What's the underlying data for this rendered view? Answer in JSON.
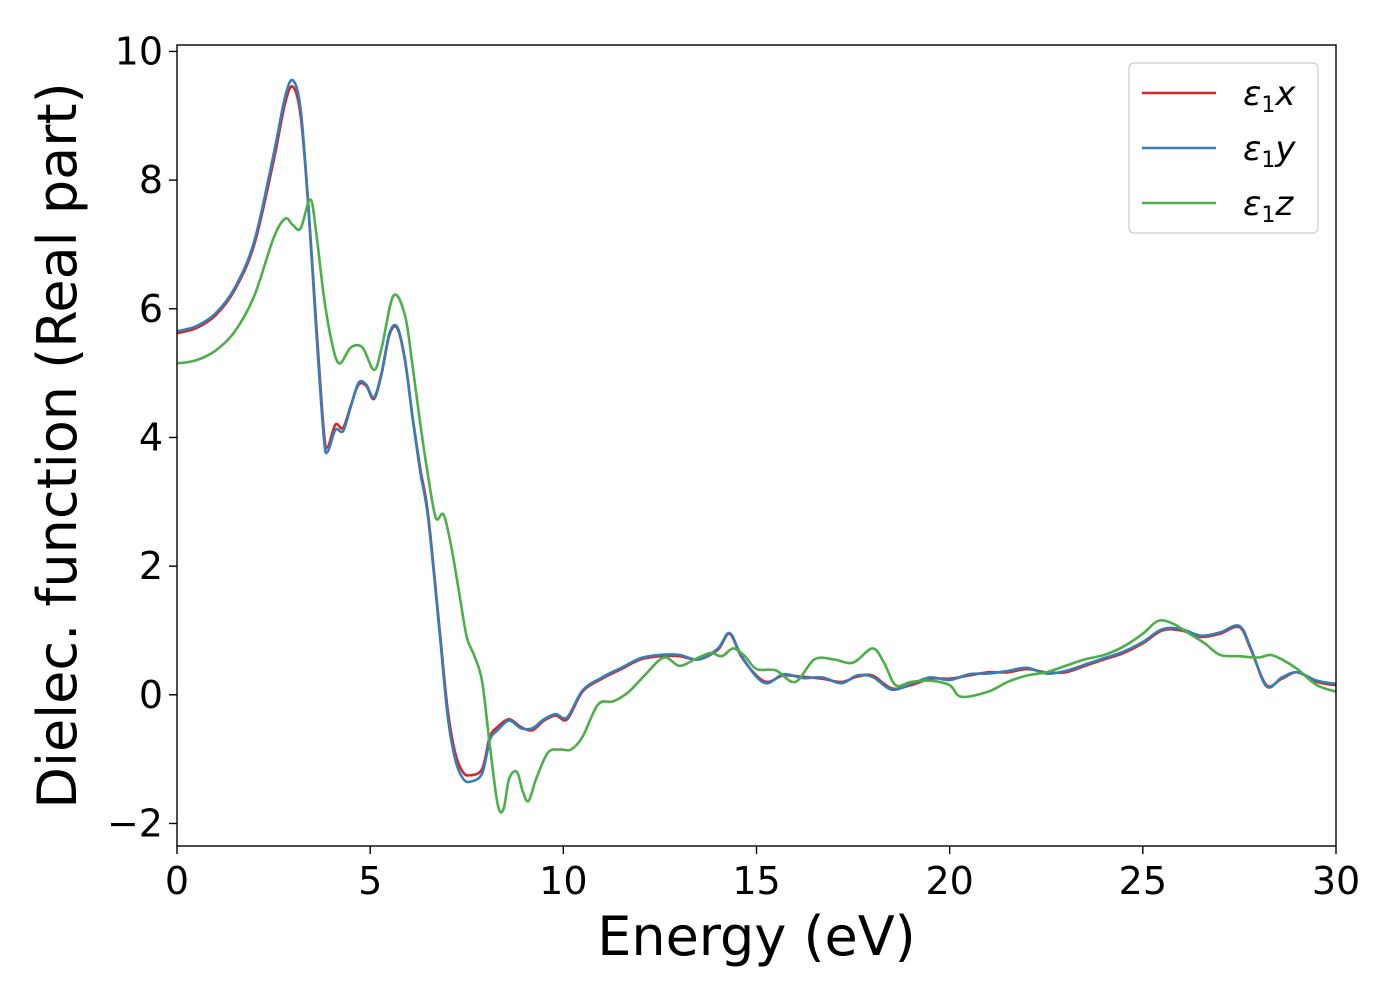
{
  "chart_data": {
    "type": "line",
    "xlabel": "Energy (eV)",
    "ylabel": "Dielec. function (Real part)",
    "xlim": [
      0,
      30
    ],
    "ylim": [
      -2.35,
      10.1
    ],
    "xticks": [
      0,
      5,
      10,
      15,
      20,
      25,
      30
    ],
    "yticks": [
      -2,
      0,
      2,
      4,
      6,
      8,
      10
    ],
    "xtick_labels": [
      "0",
      "5",
      "10",
      "15",
      "20",
      "25",
      "30"
    ],
    "ytick_labels": [
      "−2",
      "0",
      "2",
      "4",
      "6",
      "8",
      "10"
    ],
    "grid": false,
    "legend": "top-right",
    "series": [
      {
        "name": "ε₁x",
        "legend_main": "ε",
        "legend_sub": "1",
        "legend_tail": "x",
        "color": "#d62728",
        "x": [
          0,
          0.5,
          1.0,
          1.5,
          2.0,
          2.5,
          2.8,
          3.0,
          3.2,
          3.4,
          3.6,
          3.8,
          3.9,
          4.1,
          4.3,
          4.5,
          4.7,
          4.9,
          5.1,
          5.3,
          5.5,
          5.7,
          5.9,
          6.1,
          6.3,
          6.5,
          6.8,
          7.0,
          7.2,
          7.4,
          7.6,
          7.9,
          8.1,
          8.3,
          8.6,
          8.9,
          9.2,
          9.5,
          9.8,
          10.1,
          10.5,
          11.0,
          11.5,
          12.0,
          12.5,
          13.0,
          13.5,
          14.0,
          14.3,
          14.6,
          15.0,
          15.3,
          15.7,
          16.2,
          16.7,
          17.2,
          17.6,
          18.0,
          18.5,
          19.0,
          19.5,
          20.0,
          20.5,
          21.0,
          21.5,
          22.0,
          22.5,
          23.0,
          23.5,
          24.0,
          24.5,
          25.0,
          25.5,
          26.0,
          26.5,
          27.0,
          27.5,
          27.8,
          28.2,
          28.6,
          29.0,
          29.5,
          30.0
        ],
        "y": [
          5.62,
          5.7,
          5.9,
          6.3,
          7.0,
          8.3,
          9.2,
          9.45,
          9.0,
          7.6,
          5.8,
          4.1,
          3.85,
          4.2,
          4.15,
          4.5,
          4.82,
          4.8,
          4.6,
          5.0,
          5.6,
          5.7,
          5.2,
          4.3,
          3.5,
          2.8,
          1.0,
          -0.2,
          -0.9,
          -1.2,
          -1.25,
          -1.15,
          -0.65,
          -0.5,
          -0.38,
          -0.5,
          -0.55,
          -0.4,
          -0.32,
          -0.38,
          0.05,
          0.25,
          0.4,
          0.55,
          0.6,
          0.6,
          0.55,
          0.7,
          0.95,
          0.6,
          0.3,
          0.2,
          0.3,
          0.28,
          0.25,
          0.2,
          0.28,
          0.3,
          0.1,
          0.15,
          0.25,
          0.25,
          0.3,
          0.35,
          0.35,
          0.4,
          0.35,
          0.35,
          0.45,
          0.55,
          0.65,
          0.8,
          1.0,
          1.0,
          0.9,
          0.95,
          1.05,
          0.7,
          0.15,
          0.25,
          0.35,
          0.2,
          0.15
        ]
      },
      {
        "name": "ε₁y",
        "legend_main": "ε",
        "legend_sub": "1",
        "legend_tail": "y",
        "color": "#377eb8",
        "x": [
          0,
          0.5,
          1.0,
          1.5,
          2.0,
          2.5,
          2.8,
          3.0,
          3.2,
          3.4,
          3.6,
          3.8,
          3.9,
          4.1,
          4.3,
          4.5,
          4.7,
          4.9,
          5.1,
          5.3,
          5.5,
          5.7,
          5.9,
          6.1,
          6.3,
          6.5,
          6.8,
          7.0,
          7.2,
          7.4,
          7.6,
          7.9,
          8.1,
          8.3,
          8.6,
          8.9,
          9.2,
          9.5,
          9.8,
          10.1,
          10.5,
          11.0,
          11.5,
          12.0,
          12.5,
          13.0,
          13.5,
          14.0,
          14.3,
          14.6,
          15.0,
          15.3,
          15.7,
          16.2,
          16.7,
          17.2,
          17.6,
          18.0,
          18.5,
          19.0,
          19.5,
          20.0,
          20.5,
          21.0,
          21.5,
          22.0,
          22.5,
          23.0,
          23.5,
          24.0,
          24.5,
          25.0,
          25.5,
          26.0,
          26.5,
          27.0,
          27.5,
          27.8,
          28.2,
          28.6,
          29.0,
          29.5,
          30.0
        ],
        "y": [
          5.65,
          5.73,
          5.93,
          6.33,
          7.05,
          8.4,
          9.3,
          9.55,
          9.1,
          7.6,
          5.7,
          4.0,
          3.78,
          4.12,
          4.1,
          4.48,
          4.85,
          4.82,
          4.62,
          5.02,
          5.62,
          5.72,
          5.22,
          4.3,
          3.45,
          2.75,
          0.95,
          -0.3,
          -1.0,
          -1.3,
          -1.35,
          -1.22,
          -0.7,
          -0.55,
          -0.4,
          -0.52,
          -0.52,
          -0.38,
          -0.3,
          -0.35,
          0.07,
          0.27,
          0.42,
          0.57,
          0.62,
          0.62,
          0.55,
          0.72,
          0.96,
          0.62,
          0.28,
          0.18,
          0.32,
          0.26,
          0.27,
          0.18,
          0.3,
          0.28,
          0.08,
          0.17,
          0.27,
          0.23,
          0.32,
          0.33,
          0.37,
          0.42,
          0.33,
          0.37,
          0.47,
          0.57,
          0.67,
          0.82,
          1.02,
          1.02,
          0.92,
          0.97,
          1.07,
          0.72,
          0.13,
          0.27,
          0.35,
          0.22,
          0.17
        ]
      },
      {
        "name": "ε₁z",
        "legend_main": "ε",
        "legend_sub": "1",
        "legend_tail": "z",
        "color": "#4daf4a",
        "x": [
          0,
          0.5,
          1.0,
          1.5,
          2.0,
          2.5,
          2.8,
          3.0,
          3.2,
          3.45,
          3.6,
          3.8,
          4.0,
          4.2,
          4.5,
          4.8,
          5.1,
          5.3,
          5.6,
          5.9,
          6.1,
          6.3,
          6.5,
          6.7,
          6.9,
          7.1,
          7.3,
          7.5,
          7.7,
          7.9,
          8.1,
          8.3,
          8.45,
          8.6,
          8.8,
          8.95,
          9.1,
          9.3,
          9.6,
          9.9,
          10.2,
          10.5,
          10.9,
          11.3,
          11.7,
          12.1,
          12.6,
          13.0,
          13.4,
          13.8,
          14.1,
          14.4,
          14.7,
          15.0,
          15.5,
          16.0,
          16.5,
          17.0,
          17.5,
          18.0,
          18.3,
          18.6,
          19.0,
          19.5,
          20.0,
          20.3,
          21.0,
          21.5,
          22.0,
          22.5,
          23.0,
          23.5,
          24.0,
          24.5,
          25.0,
          25.4,
          25.8,
          26.2,
          26.6,
          27.0,
          27.5,
          28.0,
          28.3,
          28.6,
          29.0,
          29.5,
          30.0
        ],
        "y": [
          5.15,
          5.2,
          5.35,
          5.65,
          6.2,
          7.1,
          7.4,
          7.3,
          7.25,
          7.7,
          7.2,
          6.2,
          5.5,
          5.15,
          5.4,
          5.4,
          5.05,
          5.4,
          6.2,
          5.9,
          5.1,
          4.2,
          3.4,
          2.75,
          2.8,
          2.3,
          1.6,
          0.9,
          0.6,
          0.2,
          -0.8,
          -1.7,
          -1.78,
          -1.3,
          -1.2,
          -1.5,
          -1.65,
          -1.3,
          -0.9,
          -0.85,
          -0.85,
          -0.65,
          -0.15,
          -0.1,
          0.05,
          0.3,
          0.58,
          0.45,
          0.55,
          0.65,
          0.6,
          0.72,
          0.6,
          0.4,
          0.38,
          0.2,
          0.55,
          0.55,
          0.5,
          0.72,
          0.5,
          0.15,
          0.2,
          0.22,
          0.15,
          -0.03,
          0.05,
          0.2,
          0.3,
          0.35,
          0.45,
          0.55,
          0.62,
          0.75,
          0.95,
          1.15,
          1.1,
          0.95,
          0.8,
          0.62,
          0.6,
          0.58,
          0.62,
          0.55,
          0.4,
          0.15,
          0.05
        ]
      }
    ]
  }
}
